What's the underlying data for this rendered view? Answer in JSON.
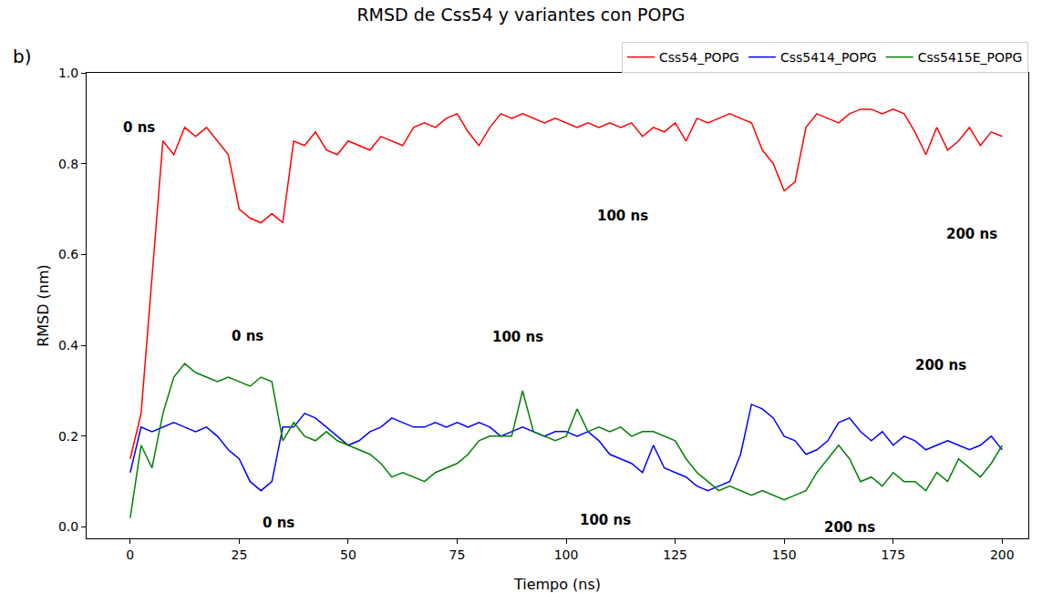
{
  "chart_data": {
    "type": "line",
    "title": "RMSD de Css54 y variantes con POPG",
    "panel_label": "b)",
    "x_label": "Tiempo (ns)",
    "y_label": "RMSD (nm)",
    "x": [
      0,
      2.5,
      5,
      7.5,
      10,
      12.5,
      15,
      17.5,
      20,
      22.5,
      25,
      27.5,
      30,
      32.5,
      35,
      37.5,
      40,
      42.5,
      45,
      47.5,
      50,
      52.5,
      55,
      57.5,
      60,
      62.5,
      65,
      67.5,
      70,
      72.5,
      75,
      77.5,
      80,
      82.5,
      85,
      87.5,
      90,
      92.5,
      95,
      97.5,
      100,
      102.5,
      105,
      107.5,
      110,
      112.5,
      115,
      117.5,
      120,
      122.5,
      125,
      127.5,
      130,
      132.5,
      135,
      137.5,
      140,
      142.5,
      145,
      147.5,
      150,
      152.5,
      155,
      157.5,
      160,
      162.5,
      165,
      167.5,
      170,
      172.5,
      175,
      177.5,
      180,
      182.5,
      185,
      187.5,
      190,
      192.5,
      195,
      197.5,
      200
    ],
    "series": [
      {
        "name": "Css54_POPG",
        "color": "#ff0000",
        "values": [
          0.15,
          0.25,
          0.55,
          0.85,
          0.82,
          0.88,
          0.86,
          0.88,
          0.85,
          0.82,
          0.7,
          0.68,
          0.67,
          0.69,
          0.67,
          0.85,
          0.84,
          0.87,
          0.83,
          0.82,
          0.85,
          0.84,
          0.83,
          0.86,
          0.85,
          0.84,
          0.88,
          0.89,
          0.88,
          0.9,
          0.91,
          0.87,
          0.84,
          0.88,
          0.91,
          0.9,
          0.91,
          0.9,
          0.89,
          0.9,
          0.89,
          0.88,
          0.89,
          0.88,
          0.89,
          0.88,
          0.89,
          0.86,
          0.88,
          0.87,
          0.89,
          0.85,
          0.9,
          0.89,
          0.9,
          0.91,
          0.9,
          0.89,
          0.83,
          0.8,
          0.74,
          0.76,
          0.88,
          0.91,
          0.9,
          0.89,
          0.91,
          0.92,
          0.92,
          0.91,
          0.92,
          0.91,
          0.87,
          0.82,
          0.88,
          0.83,
          0.85,
          0.88,
          0.84,
          0.87,
          0.86
        ]
      },
      {
        "name": "Css5414_POPG",
        "color": "#0000ff",
        "values": [
          0.12,
          0.22,
          0.21,
          0.22,
          0.23,
          0.22,
          0.21,
          0.22,
          0.2,
          0.17,
          0.15,
          0.1,
          0.08,
          0.1,
          0.22,
          0.22,
          0.25,
          0.24,
          0.22,
          0.2,
          0.18,
          0.19,
          0.21,
          0.22,
          0.24,
          0.23,
          0.22,
          0.22,
          0.23,
          0.22,
          0.23,
          0.22,
          0.23,
          0.22,
          0.2,
          0.21,
          0.22,
          0.21,
          0.2,
          0.21,
          0.21,
          0.2,
          0.21,
          0.19,
          0.16,
          0.15,
          0.14,
          0.12,
          0.18,
          0.13,
          0.12,
          0.11,
          0.09,
          0.08,
          0.09,
          0.1,
          0.16,
          0.27,
          0.26,
          0.24,
          0.2,
          0.19,
          0.16,
          0.17,
          0.19,
          0.23,
          0.24,
          0.21,
          0.19,
          0.21,
          0.18,
          0.2,
          0.19,
          0.17,
          0.18,
          0.19,
          0.18,
          0.17,
          0.18,
          0.2,
          0.17
        ]
      },
      {
        "name": "Css5415E_POPG",
        "color": "#008000",
        "values": [
          0.02,
          0.18,
          0.13,
          0.25,
          0.33,
          0.36,
          0.34,
          0.33,
          0.32,
          0.33,
          0.32,
          0.31,
          0.33,
          0.32,
          0.19,
          0.23,
          0.2,
          0.19,
          0.21,
          0.19,
          0.18,
          0.17,
          0.16,
          0.14,
          0.11,
          0.12,
          0.11,
          0.1,
          0.12,
          0.13,
          0.14,
          0.16,
          0.19,
          0.2,
          0.2,
          0.2,
          0.3,
          0.21,
          0.2,
          0.19,
          0.2,
          0.26,
          0.21,
          0.22,
          0.21,
          0.22,
          0.2,
          0.21,
          0.21,
          0.2,
          0.19,
          0.15,
          0.12,
          0.1,
          0.08,
          0.09,
          0.08,
          0.07,
          0.08,
          0.07,
          0.06,
          0.07,
          0.08,
          0.12,
          0.15,
          0.18,
          0.15,
          0.1,
          0.11,
          0.09,
          0.12,
          0.1,
          0.1,
          0.08,
          0.12,
          0.1,
          0.15,
          0.13,
          0.11,
          0.14,
          0.18
        ]
      }
    ],
    "xlim": [
      -10,
      206
    ],
    "xticks": [
      0,
      25,
      50,
      75,
      100,
      125,
      150,
      175,
      200
    ],
    "ylim": [
      -0.025,
      1.0
    ],
    "yticks": [
      {
        "value": 0,
        "label": "0.0"
      },
      0.2,
      0.4,
      0.6,
      0.8,
      {
        "value": 1,
        "label": "1.0"
      }
    ],
    "grid": false,
    "legend": "top",
    "annotations": [
      {
        "text": "0 ns",
        "x": 2,
        "y": 0.88
      },
      {
        "text": "100 ns",
        "x": 113,
        "y": 0.686
      },
      {
        "text": "200 ns",
        "x": 193,
        "y": 0.645
      },
      {
        "text": "0 ns",
        "x": 27,
        "y": 0.42
      },
      {
        "text": "100 ns",
        "x": 89,
        "y": 0.419
      },
      {
        "text": "200 ns",
        "x": 186,
        "y": 0.357
      },
      {
        "text": "0 ns",
        "x": 34,
        "y": 0.01
      },
      {
        "text": "100 ns",
        "x": 109,
        "y": 0.015
      },
      {
        "text": "200 ns",
        "x": 165,
        "y": 0.0
      }
    ]
  }
}
